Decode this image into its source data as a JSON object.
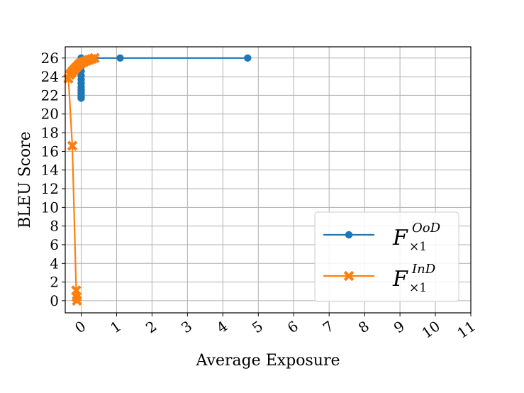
{
  "chart_data": {
    "type": "line",
    "title": "",
    "xlabel": "Average Exposure",
    "ylabel": "BLEU Score",
    "xlim": [
      -0.45,
      11
    ],
    "ylim": [
      -1.3,
      27.2
    ],
    "xticks": [
      0,
      1,
      2,
      3,
      4,
      5,
      6,
      7,
      8,
      9,
      10,
      11
    ],
    "yticks": [
      0,
      2,
      4,
      6,
      8,
      10,
      12,
      14,
      16,
      18,
      20,
      22,
      24,
      26
    ],
    "grid": true,
    "legend_position": "lower-right",
    "series": [
      {
        "name": "F_{×1}^{OoD}",
        "legend_base": "F",
        "legend_sup": "OoD",
        "legend_sub": "×1",
        "color": "#1f77b4",
        "marker": "circle",
        "x": [
          4.7,
          1.1,
          0.0,
          0.0,
          0.0,
          0.0,
          0.0,
          0.0,
          0.0,
          0.0,
          0.0,
          0.0,
          0.0,
          0.0,
          0.0
        ],
        "y": [
          26.0,
          26.0,
          26.0,
          25.6,
          25.1,
          24.6,
          24.1,
          23.7,
          23.3,
          22.9,
          22.6,
          22.3,
          22.0,
          21.8,
          21.7
        ]
      },
      {
        "name": "F_{×1}^{InD}",
        "legend_base": "F",
        "legend_sup": "InD",
        "legend_sub": "×1",
        "color": "#ff7f0e",
        "marker": "x",
        "x": [
          0.38,
          0.3,
          0.22,
          0.15,
          0.08,
          0.02,
          -0.04,
          -0.09,
          -0.14,
          -0.19,
          -0.24,
          -0.28,
          -0.32,
          -0.36,
          -0.25,
          -0.14,
          -0.13,
          -0.12
        ],
        "y": [
          26.0,
          25.9,
          25.8,
          25.7,
          25.6,
          25.5,
          25.4,
          25.2,
          25.0,
          24.8,
          24.6,
          24.4,
          24.2,
          23.8,
          16.6,
          1.1,
          0.4,
          0.0
        ]
      }
    ]
  }
}
